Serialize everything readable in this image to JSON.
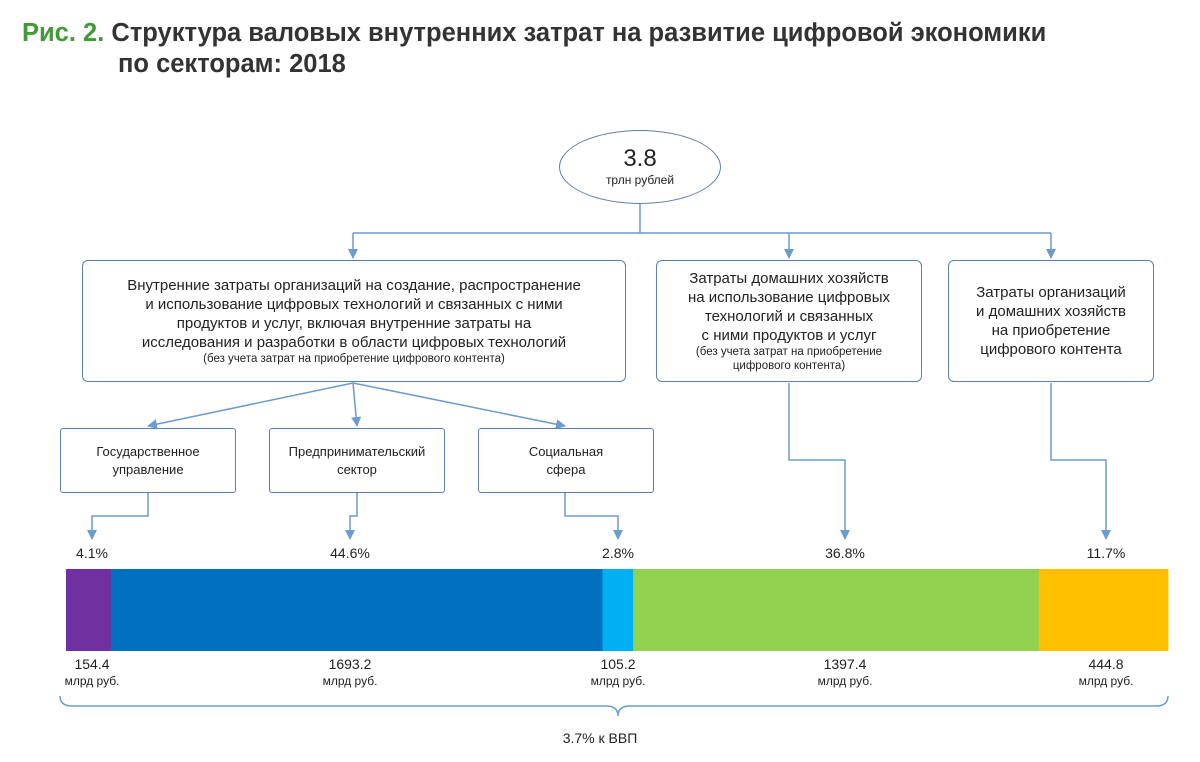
{
  "title": {
    "prefix": "Рис. 2.",
    "line1": "Структура валовых внутренних затрат на развитие цифровой экономики",
    "line2": "по секторам: 2018"
  },
  "total": {
    "value": "3.8",
    "unit": "трлн рублей"
  },
  "categories": {
    "internal": {
      "lines": [
        "Внутренние затраты организаций на создание, распространение",
        "и использование цифровых технологий и связанных с ними",
        "продуктов и услуг, включая внутренние затраты на",
        "исследования и разработки в области цифровых технологий"
      ],
      "note": "(без учета  затрат на приобретение цифрового контента)"
    },
    "households": {
      "lines": [
        "Затраты домашних хозяйств",
        "на использование цифровых",
        "технологий и связанных",
        "с ними продуктов и услуг"
      ],
      "note_lines": [
        "(без учета  затрат на приобретение",
        "цифрового контента)"
      ]
    },
    "content": {
      "lines": [
        "Затраты организаций",
        "и домашних хозяйств",
        "на приобретение",
        "цифрового контента"
      ]
    }
  },
  "subcategories": [
    {
      "lines": [
        "Государственное",
        "управление"
      ]
    },
    {
      "lines": [
        "Предпринимательский",
        "сектор"
      ]
    },
    {
      "lines": [
        "Социальная",
        "сфера"
      ]
    }
  ],
  "chart_data": {
    "type": "bar",
    "orientation": "horizontal-stacked",
    "unit": "млрд руб.",
    "total_label": "3.7% к ВВП",
    "segments": [
      {
        "percent": 4.1,
        "percent_label": "4.1%",
        "value": 154.4,
        "value_label": "154.4",
        "unit_label": "млрд руб.",
        "color": "#7030a0"
      },
      {
        "percent": 44.6,
        "percent_label": "44.6%",
        "value": 1693.2,
        "value_label": "1693.2",
        "unit_label": "млрд руб.",
        "color": "#0070c0"
      },
      {
        "percent": 2.8,
        "percent_label": "2.8%",
        "value": 105.2,
        "value_label": "105.2",
        "unit_label": "млрд руб.",
        "color": "#00b0f0"
      },
      {
        "percent": 36.8,
        "percent_label": "36.8%",
        "value": 1397.4,
        "value_label": "1397.4",
        "unit_label": "млрд руб.",
        "color": "#92d050"
      },
      {
        "percent": 11.7,
        "percent_label": "11.7%",
        "value": 444.8,
        "value_label": "444.8",
        "unit_label": "млрд руб.",
        "color": "#ffc000"
      }
    ]
  },
  "colors": {
    "title_accent": "#3f9b35",
    "connector": "#6a9bd1",
    "box_border": "#5b7fae"
  }
}
